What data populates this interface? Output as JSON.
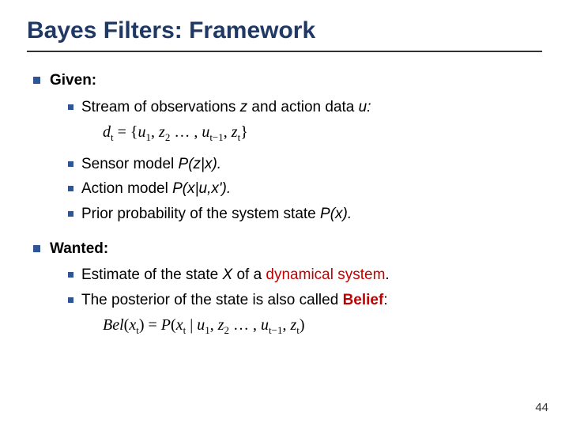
{
  "title": "Bayes Filters: Framework",
  "sections": {
    "given": {
      "heading": "Given:",
      "items": {
        "stream": {
          "pre": "Stream of observations ",
          "var1": "z",
          "mid": " and action data ",
          "var2": "u:"
        },
        "sensor_pre": "Sensor model ",
        "sensor_expr": "P(z|x).",
        "action_pre": "Action model ",
        "action_expr": "P(x|u,x').",
        "prior_pre": "Prior probability of the system state ",
        "prior_expr": "P(x)."
      }
    },
    "wanted": {
      "heading": "Wanted:",
      "items": {
        "estimate_pre": "Estimate of the state ",
        "estimate_var": "X",
        "estimate_mid": " of a ",
        "estimate_red": "dynamical system",
        "estimate_end": ".",
        "belief_pre": "The posterior of the state is also called ",
        "belief_word": "Belief",
        "belief_end": ":"
      }
    }
  },
  "formula1": {
    "d": "d",
    "t": "t",
    "eq": " = {",
    "u1a": "u",
    "u1b": "1",
    "c1": ", ",
    "z2a": "z",
    "z2b": "2",
    "ell": " … , ",
    "ut1a": "u",
    "ut1b": "t−1",
    "c2": ", ",
    "zta": "z",
    "ztb": "t",
    "close": "}"
  },
  "formula2": {
    "bel": "Bel",
    "op": "(",
    "x": "x",
    "t": "t",
    "cp": ")",
    "eq": " = ",
    "P": "P",
    "op2": "(",
    "x2": "x",
    "t2": "t",
    "bar": " | ",
    "u1a": "u",
    "u1b": "1",
    "c1": ", ",
    "z2a": "z",
    "z2b": "2",
    "ell": " … , ",
    "ut1a": "u",
    "ut1b": "t−1",
    "c2": ", ",
    "zta": "z",
    "ztb": "t",
    "cp2": ")"
  },
  "pagenum": "44",
  "colors": {
    "title": "#1f3864",
    "bullet": "#2f5597",
    "rule": "#333333",
    "red": "#c00000",
    "text": "#000000",
    "bg": "#ffffff"
  }
}
